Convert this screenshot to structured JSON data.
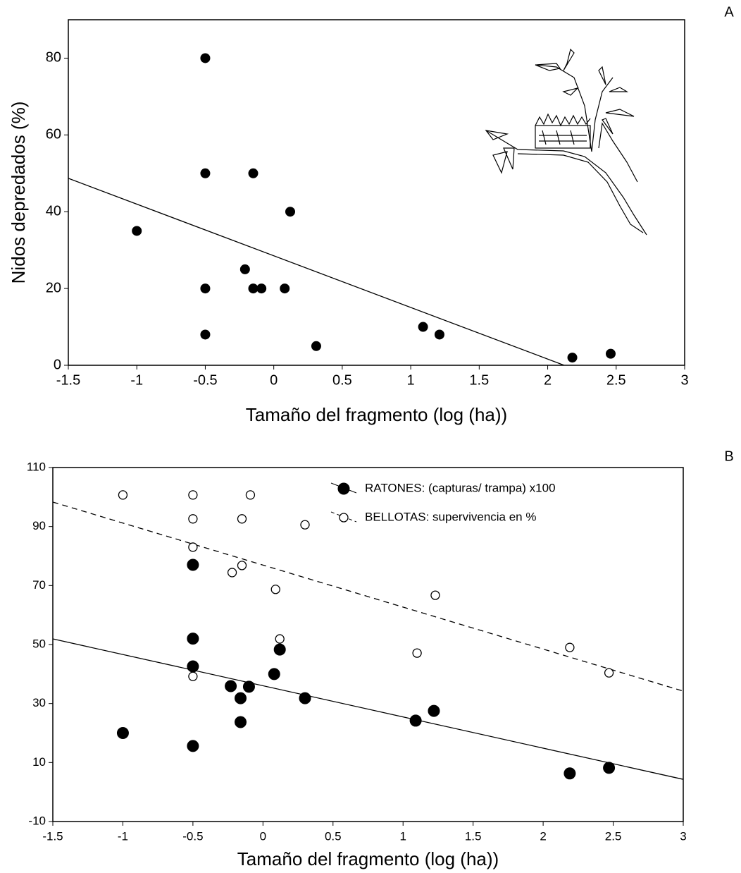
{
  "chart_data": [
    {
      "type": "scatter",
      "annotation": "A",
      "x_label": "Tamaño del fragmento (log (ha))",
      "y_label": "Nidos depredados (%)",
      "xlim": [
        -1.5,
        3
      ],
      "xticks": [
        -1.5,
        -1,
        -0.5,
        0,
        0.5,
        1,
        1.5,
        2,
        2.5,
        3
      ],
      "ylim": [
        0,
        90
      ],
      "yticks": [
        0,
        20,
        40,
        60,
        80
      ],
      "series": [
        {
          "marker": "filled",
          "color": "#000000",
          "x": [
            -1.0,
            -0.5,
            -0.5,
            -0.5,
            -0.5,
            -0.15,
            0.12,
            -0.21,
            -0.15,
            -0.09,
            0.08,
            0.31,
            1.09,
            1.21,
            2.18,
            2.46
          ],
          "y": [
            35,
            80,
            50,
            20,
            8,
            50,
            40,
            25,
            20,
            20,
            20,
            5,
            10,
            8,
            2,
            3
          ],
          "fit": {
            "x": [
              -1.5,
              2.12
            ],
            "y": [
              48.7,
              0
            ],
            "style": "solid"
          }
        }
      ]
    },
    {
      "type": "scatter",
      "annotation": "B",
      "x_label": "Tamaño del fragmento (log (ha))",
      "xlim": [
        -1.5,
        3
      ],
      "xticks": [
        -1.5,
        -1,
        -0.5,
        0,
        0.5,
        1,
        1.5,
        2,
        2.5,
        3
      ],
      "ylim": [
        -10,
        110
      ],
      "yticks": [
        -10,
        10,
        30,
        50,
        70,
        90,
        110
      ],
      "legend": "upper right",
      "series": [
        {
          "name": "RATONES: (capturas/ trampa) x100",
          "marker": "filled",
          "color": "#000000",
          "x": [
            -1.0,
            -0.5,
            -0.5,
            -0.5,
            -0.5,
            -0.23,
            -0.16,
            -0.16,
            -0.1,
            0.08,
            0.12,
            0.3,
            1.09,
            1.22,
            2.19,
            2.47
          ],
          "y": [
            20,
            77,
            52,
            42.6,
            15.6,
            35.9,
            31.8,
            23.7,
            35.7,
            40,
            48.3,
            31.8,
            24.2,
            27.5,
            6.3,
            8.2
          ],
          "fit": {
            "x": [
              -1.5,
              3
            ],
            "y": [
              51.9,
              4.3
            ],
            "style": "solid"
          }
        },
        {
          "name": "BELLOTAS: supervivencia en %",
          "marker": "open",
          "color": "#000000",
          "x": [
            -1.0,
            -0.5,
            -0.5,
            -0.5,
            -0.5,
            -0.22,
            -0.15,
            -0.15,
            -0.09,
            0.09,
            0.12,
            0.3,
            1.1,
            1.23,
            2.19,
            2.47
          ],
          "y": [
            100.7,
            100.7,
            92.6,
            83,
            39.2,
            74.4,
            76.8,
            92.6,
            100.7,
            68.7,
            51.9,
            90.6,
            47.1,
            66.7,
            49,
            40.4
          ],
          "fit": {
            "x": [
              -1.5,
              3
            ],
            "y": [
              98.3,
              34.2
            ],
            "style": "dashed"
          }
        }
      ]
    }
  ]
}
